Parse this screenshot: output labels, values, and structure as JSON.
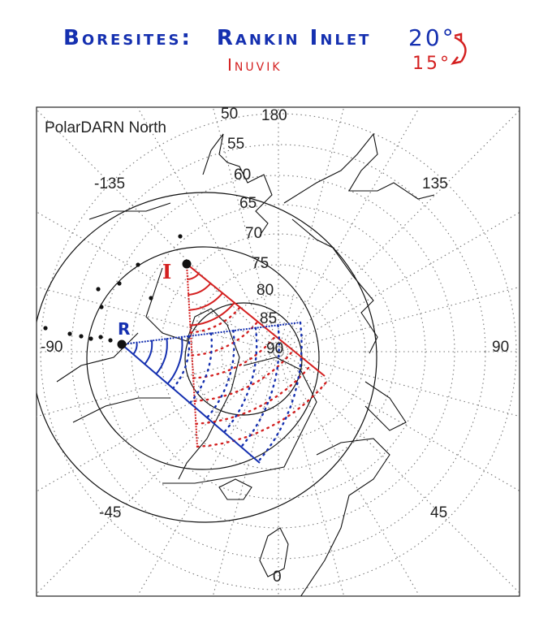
{
  "annotation": {
    "heading": "Boresites:",
    "rankin_label": "Rankin Inlet",
    "rankin_angle": "20°",
    "inuvik_label": "Inuvik",
    "inuvik_angle": "15°",
    "rankin_color": "#1530b0",
    "inuvik_color": "#d42020"
  },
  "map": {
    "title": "PolarDARN North",
    "projection": "polar stereographic, north pole centered",
    "latitude_labels": [
      "50",
      "55",
      "60",
      "65",
      "70",
      "75",
      "80",
      "85",
      "90"
    ],
    "longitude_labels": {
      "top": "180",
      "upper_left": "-135",
      "upper_right": "135",
      "left": "-90",
      "right": "90",
      "lower_left": "-45",
      "lower_right": "45",
      "bottom": "0"
    },
    "radar_markers": [
      {
        "id": "inuvik",
        "label": "I",
        "color": "#d42020"
      },
      {
        "id": "rankin",
        "label": "R",
        "color": "#1530b0"
      }
    ]
  }
}
